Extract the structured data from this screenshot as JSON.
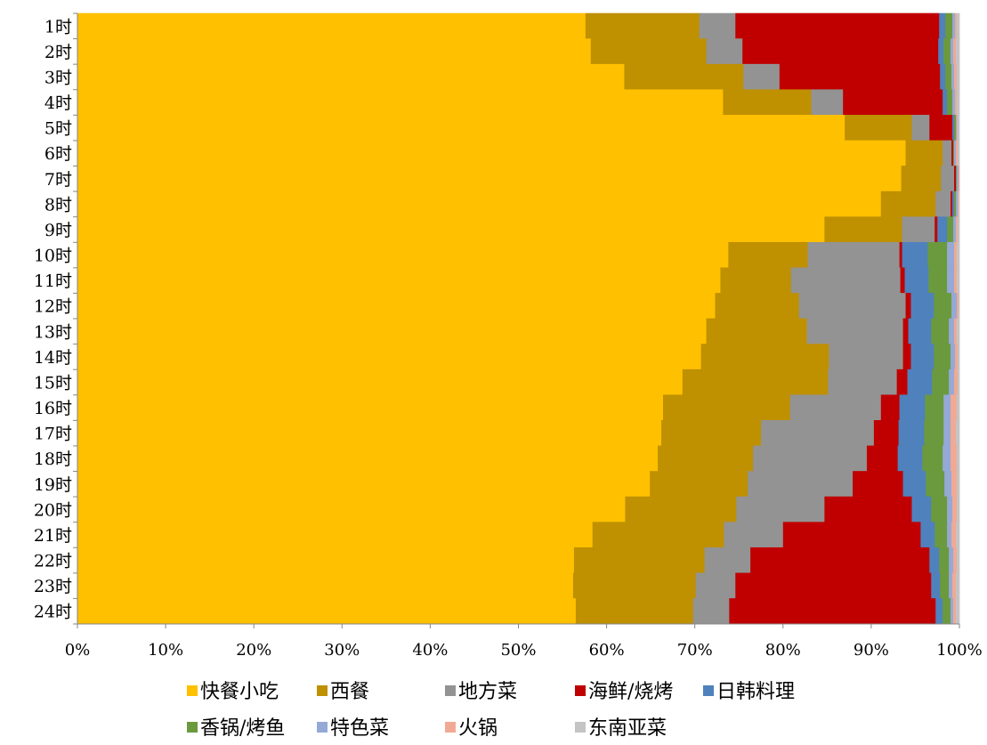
{
  "chart_data": {
    "type": "bar",
    "orientation": "horizontal",
    "stacked": "percent",
    "categories": [
      "1时",
      "2时",
      "3时",
      "4时",
      "5时",
      "6时",
      "7时",
      "8时",
      "9时",
      "10时",
      "11时",
      "12时",
      "13时",
      "14时",
      "15时",
      "16时",
      "17时",
      "18时",
      "19时",
      "20时",
      "21时",
      "22时",
      "23时",
      "24时"
    ],
    "x_ticks": [
      "0%",
      "10%",
      "20%",
      "30%",
      "40%",
      "50%",
      "60%",
      "70%",
      "80%",
      "90%",
      "100%"
    ],
    "xlim": [
      0,
      100
    ],
    "grid": false,
    "legend_position": "bottom",
    "series": [
      {
        "name": "快餐小吃",
        "color": "#FFC000",
        "values": [
          57.6,
          58.2,
          62.0,
          73.2,
          87.0,
          93.9,
          93.4,
          91.1,
          84.7,
          73.8,
          72.9,
          72.3,
          71.3,
          70.7,
          68.6,
          66.4,
          66.2,
          65.8,
          64.9,
          62.1,
          58.4,
          56.3,
          56.2,
          56.5
        ]
      },
      {
        "name": "西餐",
        "color": "#BF9000",
        "values": [
          12.9,
          13.1,
          13.5,
          10.0,
          7.6,
          4.2,
          4.5,
          6.2,
          8.8,
          9.0,
          8.0,
          9.5,
          11.4,
          14.5,
          16.5,
          14.4,
          11.3,
          10.8,
          11.1,
          12.6,
          14.9,
          14.8,
          13.9,
          13.3
        ]
      },
      {
        "name": "地方菜",
        "color": "#939393",
        "values": [
          4.1,
          4.1,
          4.1,
          3.6,
          2.0,
          1.0,
          1.5,
          1.7,
          3.7,
          10.4,
          12.4,
          12.1,
          10.9,
          8.4,
          7.8,
          10.3,
          12.8,
          12.9,
          11.9,
          10.0,
          6.7,
          5.2,
          4.5,
          4.1
        ]
      },
      {
        "name": "海鲜/烧烤",
        "color": "#C00000",
        "values": [
          23.1,
          22.2,
          18.2,
          11.3,
          2.6,
          0.2,
          0.2,
          0.2,
          0.3,
          0.3,
          0.5,
          0.6,
          0.6,
          0.9,
          1.2,
          2.1,
          2.8,
          3.5,
          5.7,
          9.9,
          15.6,
          20.3,
          22.2,
          23.4
        ]
      },
      {
        "name": "日韩料理",
        "color": "#4F81BD",
        "values": [
          0.7,
          0.6,
          0.6,
          0.5,
          0.2,
          0.0,
          0.0,
          0.2,
          1.1,
          2.9,
          2.7,
          2.6,
          2.6,
          2.6,
          2.8,
          2.9,
          2.9,
          2.8,
          2.6,
          2.2,
          1.6,
          1.1,
          1.0,
          0.8
        ]
      },
      {
        "name": "香锅/烤鱼",
        "color": "#6A9A3D",
        "values": [
          0.8,
          0.8,
          0.7,
          0.6,
          0.2,
          0.1,
          0.1,
          0.2,
          0.7,
          2.2,
          2.1,
          2.0,
          2.0,
          1.9,
          1.9,
          2.1,
          2.2,
          2.3,
          2.1,
          1.8,
          1.4,
          1.1,
          1.0,
          0.9
        ]
      },
      {
        "name": "特色菜",
        "color": "#95A9D7",
        "values": [
          0.3,
          0.3,
          0.3,
          0.3,
          0.1,
          0.2,
          0.2,
          0.2,
          0.3,
          0.8,
          0.8,
          0.6,
          0.6,
          0.5,
          0.6,
          0.8,
          0.8,
          0.9,
          0.8,
          0.6,
          0.5,
          0.5,
          0.4,
          0.3
        ]
      },
      {
        "name": "火锅",
        "color": "#F1A993",
        "values": [
          0.2,
          0.3,
          0.3,
          0.2,
          0.1,
          0.2,
          0.1,
          0.1,
          0.2,
          0.3,
          0.3,
          0.2,
          0.3,
          0.3,
          0.4,
          0.7,
          0.6,
          0.7,
          0.6,
          0.5,
          0.5,
          0.4,
          0.4,
          0.3
        ]
      },
      {
        "name": "东南亚菜",
        "color": "#C4C4C4",
        "values": [
          0.3,
          0.4,
          0.3,
          0.3,
          0.2,
          0.2,
          0.0,
          0.1,
          0.2,
          0.3,
          0.3,
          0.1,
          0.3,
          0.2,
          0.2,
          0.3,
          0.4,
          0.3,
          0.3,
          0.3,
          0.4,
          0.3,
          0.4,
          0.4
        ]
      }
    ]
  }
}
